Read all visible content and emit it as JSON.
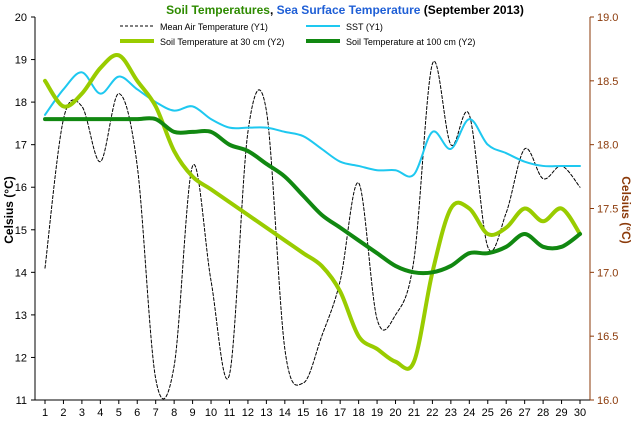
{
  "chart_data": {
    "type": "line",
    "title": {
      "part1": "Soil Temperatures",
      "sep": ", ",
      "part2": "Sea Surface Temperature",
      "part3": " (September 2013)"
    },
    "ylabel": "Celsius (°C)",
    "y2label": "Celsius (°C)",
    "ylim": [
      11,
      20
    ],
    "y2lim": [
      16,
      19
    ],
    "yticks": [
      11,
      12,
      13,
      14,
      15,
      16,
      17,
      18,
      19,
      20
    ],
    "y2ticks": [
      "16.0",
      "16.5",
      "17.0",
      "17.5",
      "18.0",
      "18.5",
      "19.0"
    ],
    "x": [
      1,
      2,
      3,
      4,
      5,
      6,
      7,
      8,
      9,
      10,
      11,
      12,
      13,
      14,
      15,
      16,
      17,
      18,
      19,
      20,
      21,
      22,
      23,
      24,
      25,
      26,
      27,
      28,
      29,
      30
    ],
    "grid": false,
    "legend_position": "top",
    "colors": {
      "title_green": "#2e8b00",
      "title_blue": "#1f5fd6",
      "title_dark": "#000000",
      "right_axis": "#8b3a0a"
    },
    "series": [
      {
        "name": "Mean Air Temperature (Y1)",
        "axis": "y1",
        "color": "#000000",
        "dash": "3,2",
        "width": 1,
        "values": [
          14.1,
          17.6,
          17.9,
          16.6,
          18.2,
          16.5,
          11.5,
          11.8,
          16.5,
          13.8,
          11.6,
          17.3,
          17.8,
          12.2,
          11.4,
          12.5,
          13.8,
          16.1,
          12.9,
          13.0,
          14.3,
          18.9,
          17.0,
          17.7,
          14.6,
          15.4,
          16.9,
          16.2,
          16.5,
          16.0
        ]
      },
      {
        "name": "SST (Y1)",
        "axis": "y1",
        "color": "#1ec8f0",
        "dash": "",
        "width": 2,
        "values": [
          17.7,
          18.3,
          18.7,
          18.2,
          18.6,
          18.3,
          18.0,
          17.8,
          17.9,
          17.6,
          17.4,
          17.4,
          17.4,
          17.3,
          17.2,
          16.9,
          16.6,
          16.5,
          16.4,
          16.4,
          16.3,
          17.3,
          16.9,
          17.6,
          17.0,
          16.8,
          16.6,
          16.5,
          16.5,
          16.5
        ]
      },
      {
        "name": "Soil Temperature at 30 cm (Y2)",
        "axis": "y2",
        "color": "#99cc00",
        "dash": "",
        "width": 4,
        "values": [
          18.5,
          18.3,
          18.4,
          18.6,
          18.7,
          18.5,
          18.3,
          17.95,
          17.75,
          17.65,
          17.55,
          17.45,
          17.35,
          17.25,
          17.15,
          17.05,
          16.85,
          16.5,
          16.4,
          16.3,
          16.3,
          17.0,
          17.5,
          17.5,
          17.3,
          17.35,
          17.5,
          17.4,
          17.5,
          17.3
        ]
      },
      {
        "name": "Soil Temperature at 100 cm (Y2)",
        "axis": "y2",
        "color": "#118811",
        "dash": "",
        "width": 4,
        "values": [
          18.2,
          18.2,
          18.2,
          18.2,
          18.2,
          18.2,
          18.2,
          18.1,
          18.1,
          18.1,
          18.0,
          17.95,
          17.85,
          17.75,
          17.6,
          17.45,
          17.35,
          17.25,
          17.15,
          17.05,
          17.0,
          17.0,
          17.05,
          17.15,
          17.15,
          17.2,
          17.3,
          17.2,
          17.2,
          17.3
        ]
      }
    ]
  }
}
